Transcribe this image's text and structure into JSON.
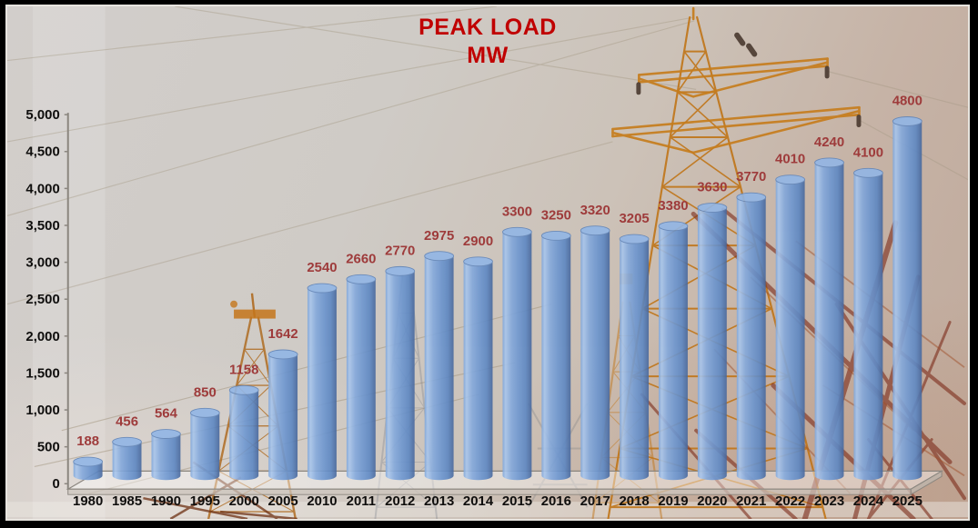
{
  "title": {
    "line1": "PEAK LOAD",
    "line2": "MW",
    "color": "#C00000"
  },
  "chart_data": {
    "type": "bar",
    "variant": "3d-cylinder",
    "title": "PEAK LOAD",
    "subtitle": "MW",
    "categories": [
      "1980",
      "1985",
      "1990",
      "1995",
      "2000",
      "2005",
      "2010",
      "2011",
      "2012",
      "2013",
      "2014",
      "2015",
      "2016",
      "2017",
      "2018",
      "2019",
      "2020",
      "2021",
      "2022",
      "2023",
      "2024",
      "2025"
    ],
    "values": [
      188,
      456,
      564,
      850,
      1158,
      1642,
      2540,
      2660,
      2770,
      2975,
      2900,
      3300,
      3250,
      3320,
      3205,
      3380,
      3630,
      3770,
      4010,
      4240,
      4100,
      4800
    ],
    "xlabel": "",
    "ylabel": "",
    "ylim": [
      0,
      5000
    ],
    "y_tick_step": 500,
    "y_ticks": [
      "0",
      "500",
      "1,000",
      "1,500",
      "2,000",
      "2,500",
      "3,000",
      "3,500",
      "4,000",
      "4,500",
      "5,000"
    ],
    "grid": false,
    "legend": "none",
    "data_label_color": "#9E3B3B",
    "axis_text_color": "#0f0e0d",
    "bar_color": "#6F9BD4",
    "bar_highlight": "#A9C6EC",
    "bar_dark_edge": "#47679C",
    "background_theme": "transmission-towers-photo"
  }
}
